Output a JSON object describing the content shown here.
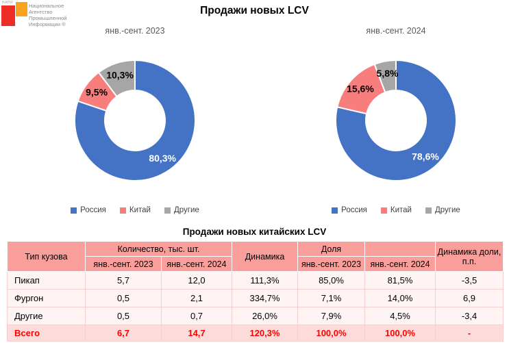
{
  "logo": {
    "acronym": "НАПИ",
    "text_lines": "Национальное\nАгентство\nПромышленной\nИнформации ®",
    "red_color": "#ee2d24",
    "orange_color": "#f9a21b"
  },
  "main_title": "Продажи новых LCV",
  "table_title": "Продажи новых китайских LCV",
  "chart_data": [
    {
      "type": "pie",
      "title": "янв.-сент. 2023",
      "labels": [
        "Россия",
        "Китай",
        "Другие"
      ],
      "values": [
        80.3,
        9.5,
        10.3
      ],
      "value_labels": [
        "80,3%",
        "9,5%",
        "10,3%"
      ],
      "colors": [
        "#4472c4",
        "#f87d7d",
        "#a6a6a6"
      ],
      "label_colors": [
        "#ffffff",
        "#000000",
        "#000000"
      ],
      "donut_hole_ratio": 0.5,
      "start_angle": "top",
      "direction": "clockwise",
      "legend_position": "bottom"
    },
    {
      "type": "pie",
      "title": "янв.-сент. 2024",
      "labels": [
        "Россия",
        "Китай",
        "Другие"
      ],
      "values": [
        78.6,
        15.6,
        5.8
      ],
      "value_labels": [
        "78,6%",
        "15,6%",
        "5,8%"
      ],
      "colors": [
        "#4472c4",
        "#f87d7d",
        "#a6a6a6"
      ],
      "label_colors": [
        "#ffffff",
        "#000000",
        "#000000"
      ],
      "donut_hole_ratio": 0.5,
      "start_angle": "top",
      "direction": "clockwise",
      "legend_position": "bottom"
    }
  ],
  "table": {
    "header": {
      "col_type": "Тип кузова",
      "group_quantity": "Количество, тыс. шт.",
      "col_dynamics": "Динамика",
      "group_share": "Доля",
      "group_share_blank": "",
      "col_share_dynamics": "Динамика доли, п.п.",
      "sub_2023": "янв.-сент. 2023",
      "sub_2024": "янв.-сент. 2024"
    },
    "rows": [
      {
        "type": "Пикап",
        "qty_2023": "5,7",
        "qty_2024": "12,0",
        "dynamics": "111,3%",
        "share_2023": "85,0%",
        "share_2024": "81,5%",
        "share_dyn": "-3,5"
      },
      {
        "type": "Фургон",
        "qty_2023": "0,5",
        "qty_2024": "2,1",
        "dynamics": "334,7%",
        "share_2023": "7,1%",
        "share_2024": "14,0%",
        "share_dyn": "6,9"
      },
      {
        "type": "Другие",
        "qty_2023": "0,5",
        "qty_2024": "0,7",
        "dynamics": "26,0%",
        "share_2023": "7,9%",
        "share_2024": "4,5%",
        "share_dyn": "-3,4"
      }
    ],
    "total": {
      "type": "Всего",
      "qty_2023": "6,7",
      "qty_2024": "14,7",
      "dynamics": "120,3%",
      "share_2023": "100,0%",
      "share_2024": "100,0%",
      "share_dyn": "-"
    }
  },
  "colors": {
    "russia_blue": "#4472c4",
    "china_pink": "#f87d7d",
    "others_gray": "#a6a6a6",
    "table_header_bg": "#f99e9b",
    "table_total_bg": "#fbdcda",
    "total_text_red": "#ff0000"
  }
}
